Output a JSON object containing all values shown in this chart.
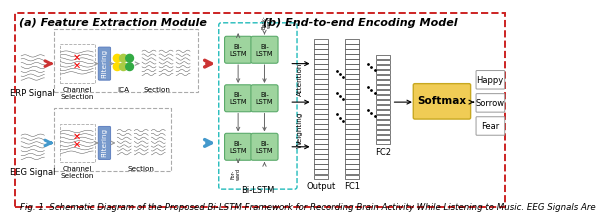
{
  "title": "Fig. 1. Schematic Diagram of the Proposed Bi-LSTM Framework for Recording Brain Activity While Listening to Music. EEG Signals Are",
  "panel_a_title": "(a) Feature Extraction Module",
  "panel_b_title": "(b) End-to-end Encoding Model",
  "outer_box_color": "#cc2222",
  "teal_dashed_color": "#22bbbb",
  "lstm_green_dark": "#5aaa6a",
  "lstm_green_light": "#9ed49e",
  "softmax_yellow": "#f0cc55",
  "softmax_edge": "#c8a820",
  "arrow_red": "#cc3333",
  "arrow_blue": "#4499cc",
  "arrow_gray": "#999999",
  "filter_blue": "#7799cc",
  "fig_caption_fontsize": 6.2,
  "panel_title_fontsize": 8.0,
  "label_fontsize": 6.0,
  "small_fontsize": 5.2
}
